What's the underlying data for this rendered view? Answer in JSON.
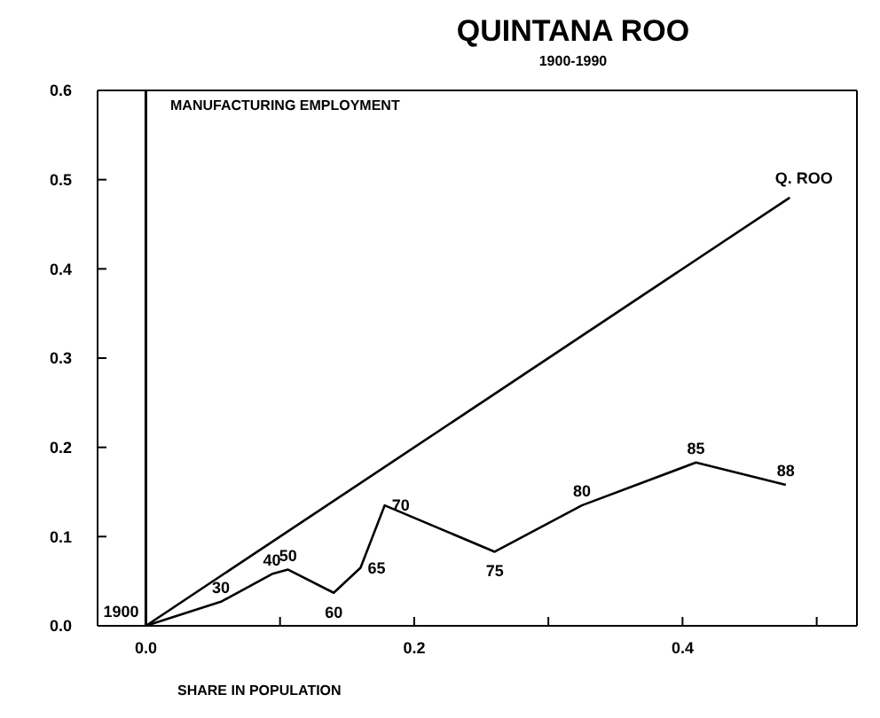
{
  "chart_data": {
    "type": "line",
    "title": "QUINTANA ROO",
    "subtitle": "1900-1990",
    "xlabel": "SHARE IN POPULATION",
    "ylabel": "MANUFACTURING EMPLOYMENT",
    "xlim": [
      -0.036,
      0.53
    ],
    "xticks": [
      {
        "value": 0,
        "label": "0.0"
      },
      {
        "value": 0.1,
        "label": null
      },
      {
        "value": 0.2,
        "label": "0.2"
      },
      {
        "value": 0.3,
        "label": null
      },
      {
        "value": 0.4,
        "label": "0.4"
      },
      {
        "value": 0.5,
        "label": null
      }
    ],
    "ylim": [
      0,
      0.6
    ],
    "yticks": [
      {
        "value": 0,
        "label": "0.0"
      },
      {
        "value": 0.1,
        "label": "0.1"
      },
      {
        "value": 0.2,
        "label": "0.2"
      },
      {
        "value": 0.3,
        "label": "0.3"
      },
      {
        "value": 0.4,
        "label": "0.4"
      },
      {
        "value": 0.5,
        "label": "0.5"
      },
      {
        "value": 0.6,
        "label": "0.6"
      }
    ],
    "legend": false,
    "marker": "none",
    "line_style": "solid",
    "ref_lines": [
      {
        "axis": "x",
        "value": 0,
        "color": "#000000"
      }
    ],
    "annotations": [
      {
        "text": "1900",
        "x": 0,
        "y": 0
      },
      {
        "text": "30",
        "x": 0.056,
        "y": 0.027
      },
      {
        "text": "40",
        "x": 0.094,
        "y": 0.058
      },
      {
        "text": "50",
        "x": 0.106,
        "y": 0.063
      },
      {
        "text": "60",
        "x": 0.14,
        "y": 0.037
      },
      {
        "text": "65",
        "x": 0.16,
        "y": 0.065
      },
      {
        "text": "70",
        "x": 0.178,
        "y": 0.135
      },
      {
        "text": "75",
        "x": 0.26,
        "y": 0.083
      },
      {
        "text": "80",
        "x": 0.325,
        "y": 0.135
      },
      {
        "text": "85",
        "x": 0.41,
        "y": 0.183
      },
      {
        "text": "88",
        "x": 0.477,
        "y": 0.158
      }
    ],
    "series": [
      {
        "name": "Q. ROO",
        "color": "#000000",
        "x": [
          0,
          0.48
        ],
        "values": [
          0,
          0.48
        ]
      },
      {
        "color": "#000000",
        "x": [
          0,
          0.056,
          0.094,
          0.106,
          0.14,
          0.16,
          0.178,
          0.26,
          0.325,
          0.41,
          0.477
        ],
        "values": [
          0,
          0.027,
          0.058,
          0.063,
          0.037,
          0.065,
          0.135,
          0.083,
          0.135,
          0.183,
          0.158
        ]
      }
    ]
  }
}
